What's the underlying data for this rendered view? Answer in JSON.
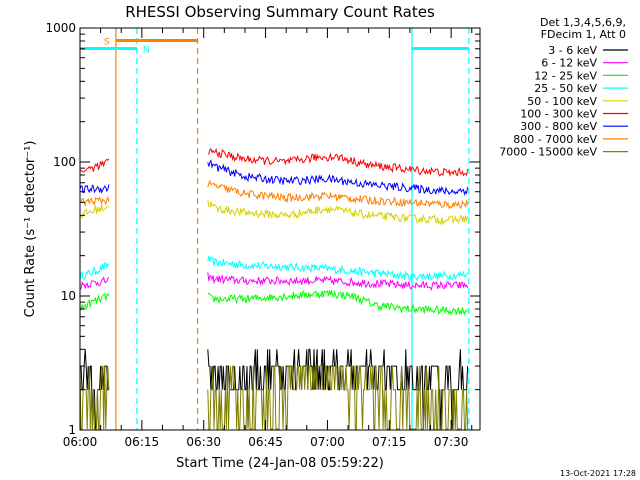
{
  "chart_data": {
    "type": "line",
    "title": "RHESSI Observing Summary Count Rates",
    "xlabel": "Start Time (24-Jan-08 05:59:22)",
    "ylabel": "Count Rate (s⁻¹ detector⁻¹)",
    "x_unit": "minutes after 06:00 UT",
    "xlim": [
      0,
      97
    ],
    "ylim": [
      1,
      1000
    ],
    "y_scale": "log",
    "x_ticks": [
      {
        "value": 0,
        "label": "06:00"
      },
      {
        "value": 15,
        "label": "06:15"
      },
      {
        "value": 30,
        "label": "06:30"
      },
      {
        "value": 45,
        "label": "06:45"
      },
      {
        "value": 60,
        "label": "07:00"
      },
      {
        "value": 75,
        "label": "07:15"
      },
      {
        "value": 90,
        "label": "07:30"
      }
    ],
    "y_ticks": [
      {
        "value": 1,
        "label": "1"
      },
      {
        "value": 10,
        "label": "10"
      },
      {
        "value": 100,
        "label": "100"
      },
      {
        "value": 1000,
        "label": "1000"
      }
    ],
    "legend": {
      "position": "top-right",
      "header": [
        "Det 1,3,4,5,6,9,",
        "FDecim 1, Att 0"
      ],
      "entries": [
        "3 - 6 keV",
        "6 - 12 keV",
        "12 - 25 keV",
        "25 - 50 keV",
        "50 - 100 keV",
        "100 - 300 keV",
        "300 - 800 keV",
        "800 - 7000 keV",
        "7000 - 15000 keV"
      ]
    },
    "data_gaps": [
      [
        7,
        31
      ]
    ],
    "series": [
      {
        "name": "25 - 50 keV",
        "color": "#00ffff",
        "x": [
          0,
          3,
          6.8,
          31,
          32,
          40,
          50,
          60,
          70,
          80,
          90,
          94
        ],
        "y": [
          14,
          15,
          17,
          19,
          18,
          17,
          16.5,
          16,
          15,
          14,
          14.2,
          14.5
        ]
      },
      {
        "name": "6 - 12 keV",
        "color": "#ff00ff",
        "x": [
          0,
          3,
          6.8,
          31,
          32,
          40,
          50,
          60,
          70,
          80,
          90,
          94
        ],
        "y": [
          12,
          12.5,
          13,
          14,
          13.5,
          13,
          13,
          13,
          12.5,
          12,
          12,
          12
        ]
      },
      {
        "name": "12 - 25 keV",
        "color": "#00ff00",
        "x": [
          0,
          3,
          6.8,
          31,
          32,
          40,
          50,
          60,
          66,
          72,
          80,
          90,
          94
        ],
        "y": [
          8,
          9,
          10,
          10,
          9.5,
          9.5,
          10,
          10.5,
          10,
          8.5,
          8,
          7.8,
          7.8
        ]
      },
      {
        "name": "50 - 100 keV",
        "color": "#d8d000",
        "x": [
          0,
          3,
          6.8,
          31,
          33,
          40,
          50,
          60,
          70,
          80,
          90,
          94
        ],
        "y": [
          40,
          43,
          47,
          50,
          45,
          42,
          40,
          45,
          40,
          38,
          37,
          38
        ]
      },
      {
        "name": "800 - 7000 keV",
        "color": "#ff8000",
        "x": [
          0,
          3,
          6.8,
          31,
          33,
          40,
          50,
          60,
          70,
          80,
          90,
          94
        ],
        "y": [
          50,
          51,
          52,
          68,
          66,
          58,
          54,
          56,
          52,
          50,
          48,
          49
        ]
      },
      {
        "name": "300 - 800 keV",
        "color": "#0000ff",
        "x": [
          0,
          3,
          6.8,
          31,
          33,
          40,
          50,
          60,
          70,
          80,
          90,
          94
        ],
        "y": [
          62,
          63,
          64,
          100,
          92,
          78,
          72,
          75,
          68,
          64,
          60,
          62
        ]
      },
      {
        "name": "100 - 300 keV",
        "color": "#ff0000",
        "x": [
          0,
          3,
          6.8,
          31,
          33,
          40,
          50,
          57,
          62,
          70,
          80,
          90,
          94
        ],
        "y": [
          85,
          90,
          100,
          120,
          118,
          105,
          100,
          108,
          110,
          95,
          88,
          83,
          85
        ]
      },
      {
        "name": "3 - 6 keV",
        "color": "#000000",
        "x": [
          0,
          3,
          6.8,
          31,
          40,
          50,
          55,
          62,
          70,
          80,
          90,
          94
        ],
        "y": [
          2.5,
          2.5,
          2.5,
          2.5,
          2.5,
          2.7,
          3.2,
          3.0,
          2.6,
          2.5,
          2.5,
          2.5
        ]
      },
      {
        "name": "7000 - 15000 keV",
        "color": "#808000",
        "x": [
          0,
          3,
          6.8,
          31,
          40,
          50,
          55,
          62,
          70,
          80,
          90,
          94
        ],
        "y": [
          1.6,
          1.7,
          1.7,
          1.6,
          1.6,
          2.0,
          2.8,
          2.6,
          2.0,
          1.5,
          1.5,
          1.5
        ]
      }
    ],
    "flag_bars": [
      {
        "label": "S",
        "color": "#ff8000",
        "x_start": 8.7,
        "x_end": 28.5
      },
      {
        "label": "N",
        "color": "#00ffff",
        "x_start": -1,
        "x_end": 13.8
      },
      {
        "label": "",
        "color": "#00ffff",
        "x_start": 80.5,
        "x_end": 94.3
      }
    ],
    "vertical_lines": [
      {
        "color": "#ff8000",
        "x": 8.7,
        "style": "solid"
      },
      {
        "color": "#ff8000",
        "x": 28.5,
        "style": "dashed"
      },
      {
        "color": "#00ffff",
        "x": 13.8,
        "style": "dashed"
      },
      {
        "color": "#00ffff",
        "x": 80.5,
        "style": "solid"
      },
      {
        "color": "#00ffff",
        "x": 94.3,
        "style": "dashed"
      }
    ]
  },
  "footer": {
    "timestamp": "13-Oct-2021 17:28"
  }
}
